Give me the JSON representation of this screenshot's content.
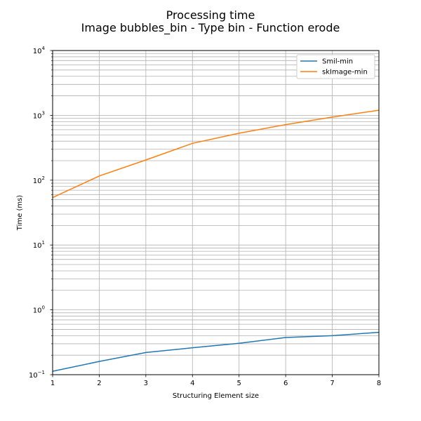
{
  "chart_data": {
    "type": "line",
    "title": "Processing time",
    "subtitle": "Image bubbles_bin - Type bin - Function erode",
    "xlabel": "Structuring Element size",
    "ylabel": "Time (ms)",
    "x": [
      1,
      2,
      3,
      4,
      5,
      6,
      7,
      8
    ],
    "xlim": [
      1,
      8
    ],
    "ylim": [
      0.1,
      10000
    ],
    "yscale": "log",
    "grid": true,
    "legend_position": "top-right",
    "x_ticks": [
      "1",
      "2",
      "3",
      "4",
      "5",
      "6",
      "7",
      "8"
    ],
    "y_ticks": [
      {
        "base": "10",
        "exp": "−1",
        "value": 0.1
      },
      {
        "base": "10",
        "exp": "0",
        "value": 1
      },
      {
        "base": "10",
        "exp": "1",
        "value": 10
      },
      {
        "base": "10",
        "exp": "2",
        "value": 100
      },
      {
        "base": "10",
        "exp": "3",
        "value": 1000
      },
      {
        "base": "10",
        "exp": "4",
        "value": 10000
      }
    ],
    "series": [
      {
        "name": "Smil-min",
        "color": "#1f77b4",
        "values": [
          0.113,
          0.16,
          0.22,
          0.26,
          0.305,
          0.375,
          0.4,
          0.45
        ]
      },
      {
        "name": "skImage-min",
        "color": "#ff7f0e",
        "values": [
          54,
          116,
          205,
          370,
          530,
          720,
          940,
          1200
        ]
      }
    ]
  }
}
